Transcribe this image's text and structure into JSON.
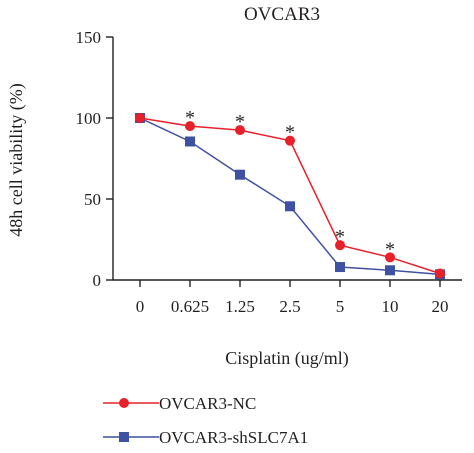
{
  "chart_data": {
    "type": "line",
    "title": "OVCAR3",
    "xlabel": "Cisplatin (ug/ml)",
    "ylabel": "48h cell viability (%)",
    "categories": [
      "0",
      "0.625",
      "1.25",
      "2.5",
      "5",
      "10",
      "20"
    ],
    "ylim": [
      0,
      150
    ],
    "yticks": [
      "0",
      "50",
      "100",
      "150"
    ],
    "grid": false,
    "legend_position": "bottom",
    "series": [
      {
        "name": "OVCAR3-NC",
        "color": "#e8202a",
        "marker": "circle",
        "values": [
          100,
          95,
          92.5,
          86,
          21.5,
          14,
          4
        ]
      },
      {
        "name": "OVCAR3-shSLC7A1",
        "color": "#3f51a3",
        "marker": "square",
        "values": [
          100,
          85.5,
          65,
          45.5,
          8,
          6,
          3.5
        ]
      }
    ],
    "annotations": [
      {
        "category": "0.625",
        "text": "*"
      },
      {
        "category": "1.25",
        "text": "*"
      },
      {
        "category": "2.5",
        "text": "*"
      },
      {
        "category": "5",
        "text": "*"
      },
      {
        "category": "10",
        "text": "*"
      }
    ]
  }
}
